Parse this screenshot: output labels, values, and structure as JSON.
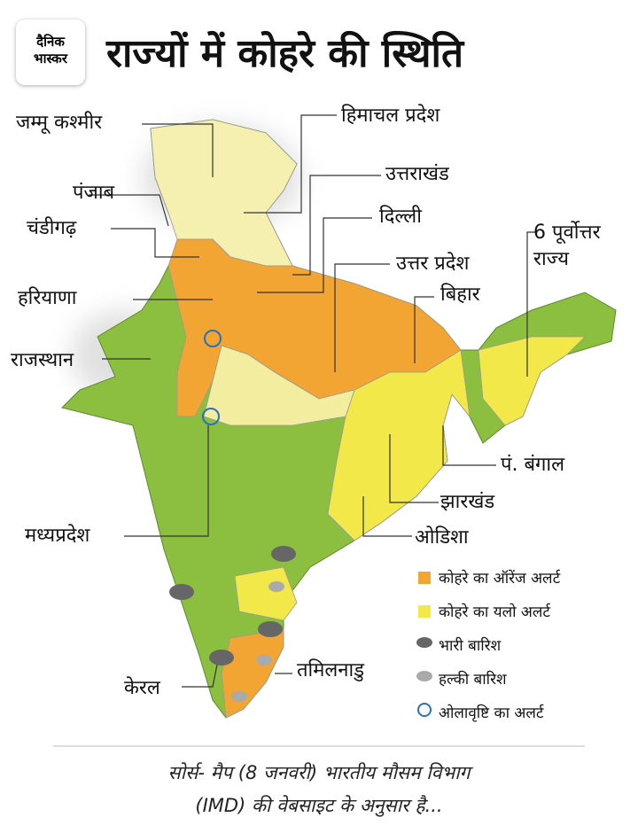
{
  "header": {
    "logo": [
      "दैनिक",
      "भास्कर"
    ],
    "title": "राज्यों में कोहरे की स्थिति"
  },
  "labels": [
    "जम्मू कश्मीर",
    "हिमाचल प्रदेश",
    "उत्तराखंड",
    "पंजाब",
    "चंडीगढ़",
    "दिल्ली",
    "उत्तर प्रदेश",
    "6 पूर्वोत्तर राज्य",
    "हरियाणा",
    "बिहार",
    "राजस्थान",
    "पं. बंगाल",
    "झारखंड",
    "मध्यप्रदेश",
    "ओडिशा",
    "तमिलनाडु",
    "केरल"
  ],
  "legend": [
    "कोहरे का ऑरेंज अलर्ट",
    "कोहरे का यलो अलर्ट",
    "भारी बारिश",
    "हल्की बारिश",
    "ओलावृष्टि का अलर्ट"
  ],
  "source": [
    "सोर्स- मैप  (8 जनवरी) भारतीय मौसम विभाग",
    "(IMD) की वेबसाइट के अनुसार है..."
  ]
}
